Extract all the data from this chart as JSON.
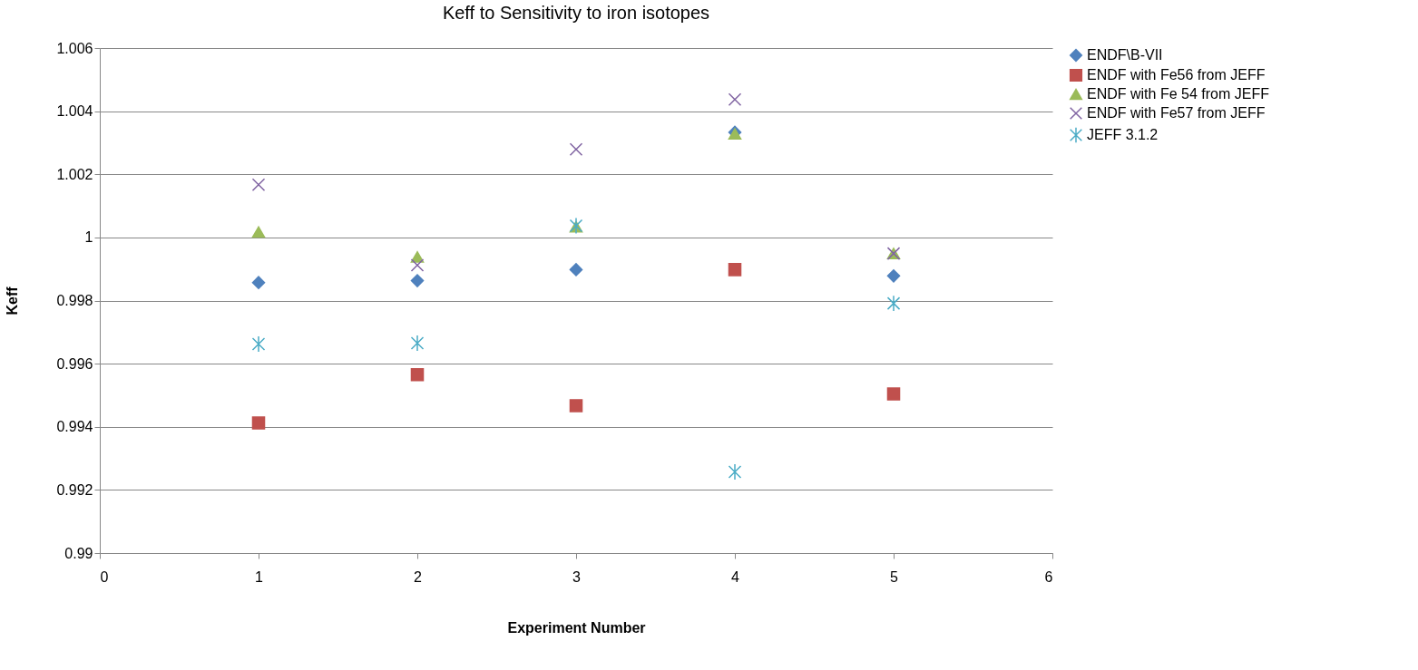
{
  "chart_data": {
    "type": "scatter",
    "title": "Keff to Sensitivity to iron isotopes",
    "xlabel": "Experiment Number",
    "ylabel": "Keff",
    "x": [
      1,
      2,
      3,
      4,
      5
    ],
    "series": [
      {
        "name": "ENDF\\B-VII",
        "color": "#4f81bd",
        "marker": "diamond",
        "values": [
          0.99857,
          0.99863,
          0.99898,
          1.00333,
          0.99878
        ]
      },
      {
        "name": "ENDF with Fe56 from JEFF",
        "color": "#c0504d",
        "marker": "square",
        "values": [
          0.99412,
          0.99565,
          0.99467,
          0.99898,
          0.99504
        ]
      },
      {
        "name": "ENDF with Fe 54 from JEFF",
        "color": "#9bbb59",
        "marker": "triangle",
        "values": [
          1.00017,
          0.99938,
          1.00034,
          1.00328,
          0.99949
        ]
      },
      {
        "name": "ENDF with Fe57 from JEFF",
        "color": "#8064a2",
        "marker": "cross",
        "values": [
          1.00167,
          0.99912,
          1.00279,
          1.00437,
          0.99949
        ]
      },
      {
        "name": "JEFF 3.1.2",
        "color": "#4bacc6",
        "marker": "cross",
        "values": [
          0.99662,
          0.99665,
          1.00037,
          0.99257,
          0.99791
        ]
      }
    ],
    "xlim": [
      0,
      6
    ],
    "xticks": [
      0,
      1,
      2,
      3,
      4,
      5,
      6
    ],
    "ylim": [
      0.99,
      1.006
    ],
    "yticks": [
      0.99,
      0.992,
      0.994,
      0.996,
      0.998,
      1,
      1.002,
      1.004,
      1.006
    ],
    "grid": "y",
    "legend": "right"
  }
}
